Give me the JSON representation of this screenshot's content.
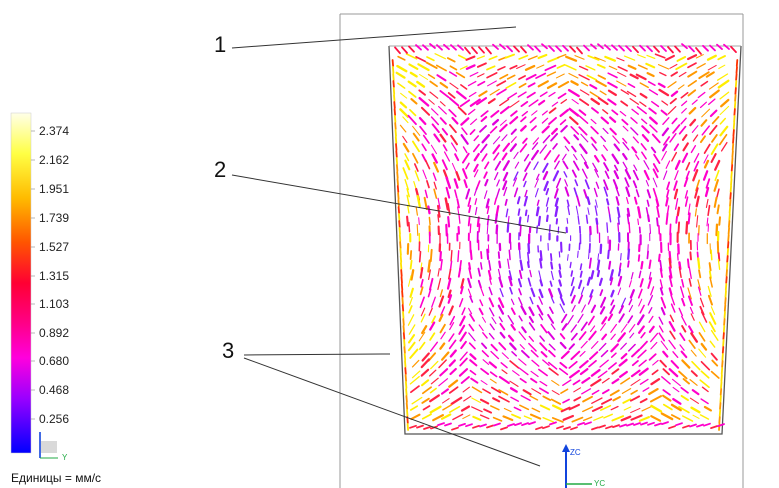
{
  "legend": {
    "values": [
      "2.374",
      "2.162",
      "1.951",
      "1.739",
      "1.527",
      "1.315",
      "1.103",
      "0.892",
      "0.680",
      "0.468",
      "0.256"
    ],
    "units": "Единицы = мм/с",
    "colors": {
      "top": "#ffffe8",
      "high": "#ffff00",
      "mid_high": "#ff9900",
      "mid": "#ff0033",
      "mid_low": "#ff00cc",
      "low": "#9900ff",
      "bottom": "#0000ff"
    }
  },
  "callouts": [
    {
      "label": "1"
    },
    {
      "label": "2"
    },
    {
      "label": "3"
    }
  ],
  "triad": {
    "zc": "ZC",
    "yc": "YC",
    "small_y": "Y"
  },
  "colors": {
    "wall": "#555555",
    "outline": "#999999",
    "vector_core": "#ff00cc",
    "vector_edge": "#ffd000"
  }
}
